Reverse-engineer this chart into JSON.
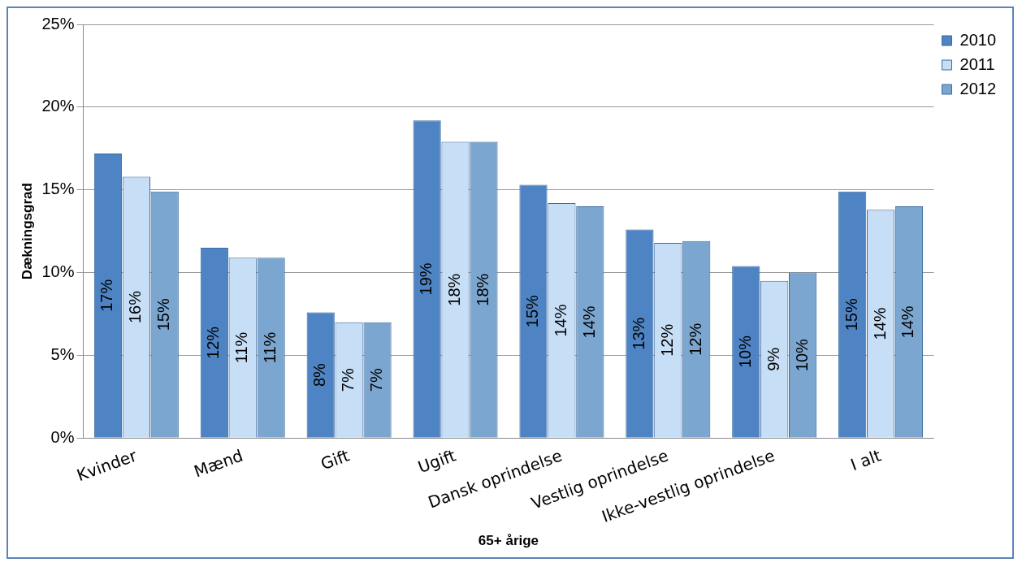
{
  "chart_data": {
    "type": "bar",
    "xlabel": "65+ årige",
    "ylabel": "Dækningsgrad",
    "categories": [
      "Kvinder",
      "Mænd",
      "Gift",
      "Ugift",
      "Dansk oprindelse",
      "Vestlig oprindelse",
      "Ikke-vestlig oprindelse",
      "I alt"
    ],
    "series": [
      {
        "name": "2010",
        "color": "#4f84c4",
        "values": [
          17.2,
          11.5,
          7.6,
          19.2,
          15.3,
          12.6,
          10.4,
          14.9
        ],
        "value_labels": [
          "17%",
          "12%",
          "8%",
          "19%",
          "15%",
          "13%",
          "10%",
          "15%"
        ]
      },
      {
        "name": "2011",
        "color": "#c6def6",
        "values": [
          15.8,
          10.9,
          7.0,
          17.9,
          14.2,
          11.8,
          9.5,
          13.8
        ],
        "value_labels": [
          "16%",
          "11%",
          "7%",
          "18%",
          "14%",
          "12%",
          "9%",
          "14%"
        ]
      },
      {
        "name": "2012",
        "color": "#7ba6d0",
        "values": [
          14.9,
          10.9,
          7.0,
          17.9,
          14.0,
          11.9,
          10.0,
          14.0
        ],
        "value_labels": [
          "15%",
          "11%",
          "7%",
          "18%",
          "14%",
          "12%",
          "10%",
          "14%"
        ]
      }
    ],
    "ylim": [
      0,
      25
    ],
    "yticks": [
      {
        "value": 0,
        "label": "0%"
      },
      {
        "value": 5,
        "label": "5%"
      },
      {
        "value": 10,
        "label": "10%"
      },
      {
        "value": 15,
        "label": "15%"
      },
      {
        "value": 20,
        "label": "20%"
      },
      {
        "value": 25,
        "label": "25%"
      }
    ],
    "grid": "y",
    "legend": "top right"
  }
}
